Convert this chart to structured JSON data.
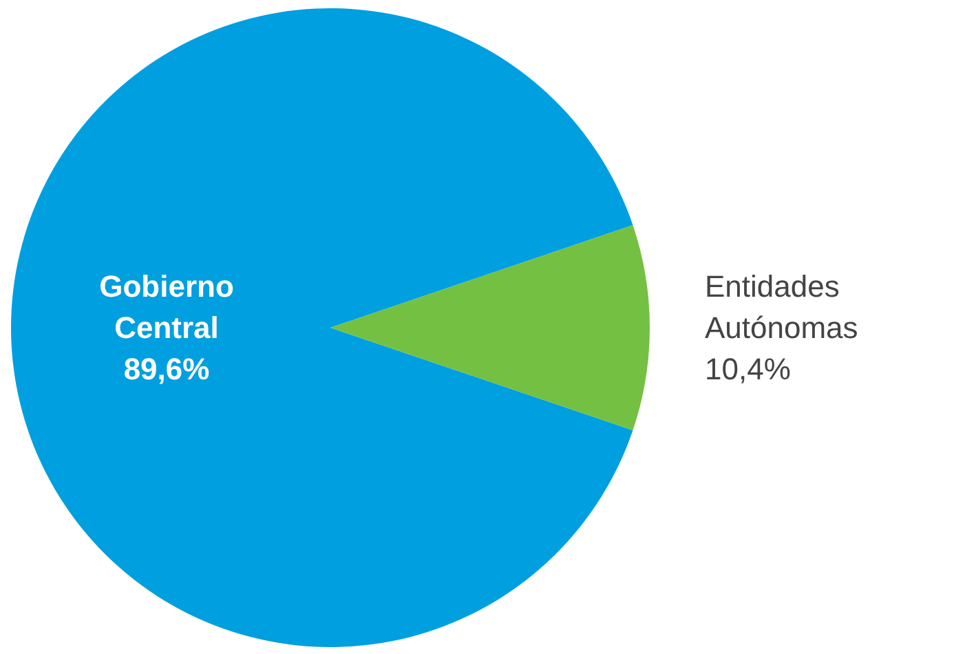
{
  "chart_data": {
    "type": "pie",
    "categories": [
      "Gobierno Central",
      "Entidades Autónomas"
    ],
    "values": [
      89.6,
      10.4
    ],
    "colors": [
      "#009fe0",
      "#74c043"
    ],
    "value_labels": [
      "89,6%",
      "10,4%"
    ]
  }
}
